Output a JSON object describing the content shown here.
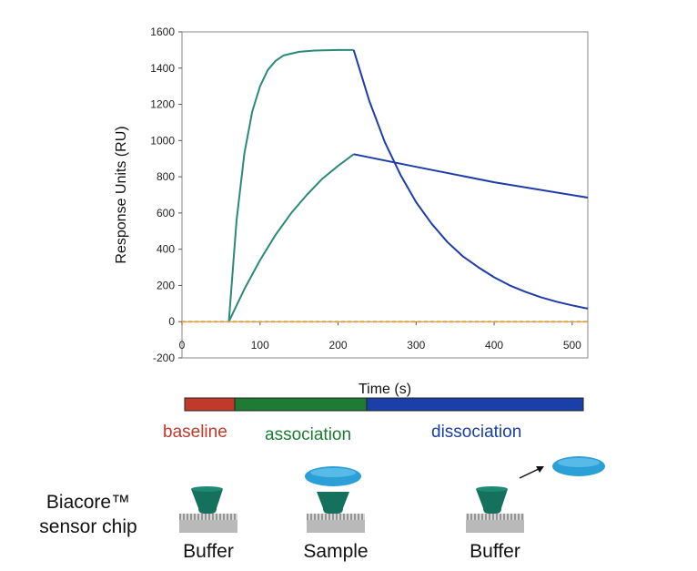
{
  "chart_data": {
    "type": "line",
    "title": "",
    "xlabel": "Time (s)",
    "ylabel": "Response Units (RU)",
    "xlim": [
      0,
      520
    ],
    "ylim": [
      -200,
      1600
    ],
    "xticks": [
      0,
      100,
      200,
      300,
      400,
      500
    ],
    "yticks": [
      -200,
      0,
      200,
      400,
      600,
      800,
      1000,
      1200,
      1400,
      1600
    ],
    "grid": false,
    "legend": "none",
    "series": [
      {
        "color": "#2a8a78",
        "x": [
          60,
          70,
          80,
          90,
          100,
          110,
          120,
          130,
          150,
          170,
          200,
          220
        ],
        "y": [
          0,
          560,
          930,
          1160,
          1300,
          1390,
          1440,
          1470,
          1490,
          1497,
          1500,
          1500
        ]
      },
      {
        "color": "#2a8a78",
        "x": [
          60,
          80,
          100,
          120,
          140,
          160,
          180,
          200,
          220
        ],
        "y": [
          0,
          180,
          340,
          480,
          600,
          700,
          790,
          860,
          925
        ]
      },
      {
        "color": "#1e3caa",
        "x": [
          220,
          240,
          260,
          280,
          300,
          320,
          340,
          360,
          380,
          400,
          420,
          440,
          460,
          480,
          500,
          520
        ],
        "y": [
          1500,
          1220,
          990,
          810,
          660,
          540,
          440,
          360,
          300,
          245,
          200,
          165,
          135,
          110,
          90,
          72
        ]
      },
      {
        "color": "#1e3caa",
        "x": [
          220,
          300,
          400,
          520
        ],
        "y": [
          925,
          855,
          770,
          685
        ]
      },
      {
        "color": "#f0a020",
        "dashed": true,
        "x": [
          0,
          520
        ],
        "y": [
          0,
          0
        ]
      }
    ]
  },
  "phases": [
    {
      "label": "baseline",
      "color": "#c0392b"
    },
    {
      "label": "association",
      "color": "#1e7b34"
    },
    {
      "label": "dissociation",
      "color": "#1a3fa8"
    }
  ],
  "chip_side_label": [
    "Biacore™",
    "sensor chip"
  ],
  "stages": [
    "Buffer",
    "Sample",
    "Buffer"
  ]
}
